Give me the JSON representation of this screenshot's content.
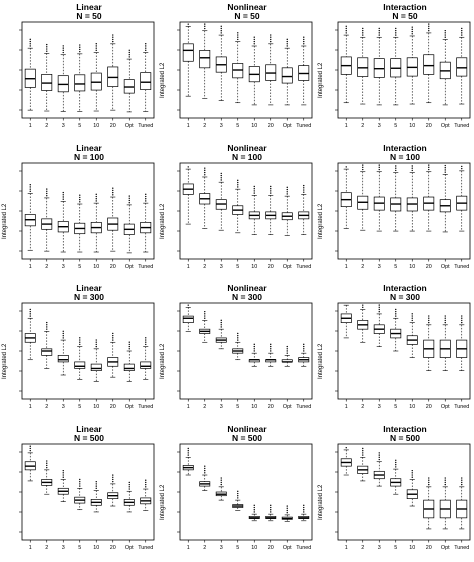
{
  "ylabel": "Integrated L2",
  "categories": [
    "1",
    "2",
    "3",
    "5",
    "10",
    "20",
    "Opt",
    "Tuned"
  ],
  "chart_data": [
    {
      "type": "box",
      "title": "Linear",
      "subtitle": "N = 50",
      "ylim": [
        0,
        0.022
      ],
      "yticks": [],
      "categories": [
        "1",
        "2",
        "3",
        "5",
        "10",
        "20",
        "Opt",
        "Tuned"
      ],
      "series": [
        {
          "median": 0.009,
          "q1": 0.007,
          "q3": 0.0112,
          "whisker_low": 0.0018,
          "whisker_high": 0.016
        },
        {
          "median": 0.008,
          "q1": 0.0063,
          "q3": 0.01,
          "whisker_low": 0.0016,
          "whisker_high": 0.0148
        },
        {
          "median": 0.0077,
          "q1": 0.006,
          "q3": 0.0097,
          "whisker_low": 0.0015,
          "whisker_high": 0.0145
        },
        {
          "median": 0.0078,
          "q1": 0.0062,
          "q3": 0.0099,
          "whisker_low": 0.0015,
          "whisker_high": 0.0147
        },
        {
          "median": 0.0082,
          "q1": 0.0064,
          "q3": 0.0103,
          "whisker_low": 0.0016,
          "whisker_high": 0.015
        },
        {
          "median": 0.0093,
          "q1": 0.0072,
          "q3": 0.0117,
          "whisker_low": 0.0018,
          "whisker_high": 0.017
        },
        {
          "median": 0.0071,
          "q1": 0.0057,
          "q3": 0.0088,
          "whisker_low": 0.0014,
          "whisker_high": 0.0135
        },
        {
          "median": 0.0082,
          "q1": 0.0065,
          "q3": 0.0104,
          "whisker_low": 0.0015,
          "whisker_high": 0.015
        }
      ]
    },
    {
      "type": "box",
      "title": "Nonlinear",
      "subtitle": "N = 50",
      "ylim": [
        0,
        0.022
      ],
      "yticks": [],
      "categories": [
        "1",
        "2",
        "3",
        "5",
        "10",
        "20",
        "Opt",
        "Tuned"
      ],
      "series": [
        {
          "median": 0.0155,
          "q1": 0.013,
          "q3": 0.017,
          "whisker_low": 0.005,
          "whisker_high": 0.021
        },
        {
          "median": 0.0138,
          "q1": 0.0115,
          "q3": 0.0155,
          "whisker_low": 0.0045,
          "whisker_high": 0.02
        },
        {
          "median": 0.0122,
          "q1": 0.0105,
          "q3": 0.014,
          "whisker_low": 0.004,
          "whisker_high": 0.019
        },
        {
          "median": 0.011,
          "q1": 0.0092,
          "q3": 0.0125,
          "whisker_low": 0.0035,
          "whisker_high": 0.0175
        },
        {
          "median": 0.01,
          "q1": 0.0083,
          "q3": 0.0118,
          "whisker_low": 0.003,
          "whisker_high": 0.0165
        },
        {
          "median": 0.0103,
          "q1": 0.0086,
          "q3": 0.0122,
          "whisker_low": 0.003,
          "whisker_high": 0.017
        },
        {
          "median": 0.0095,
          "q1": 0.008,
          "q3": 0.0115,
          "whisker_low": 0.003,
          "whisker_high": 0.016
        },
        {
          "median": 0.0102,
          "q1": 0.0086,
          "q3": 0.012,
          "whisker_low": 0.003,
          "whisker_high": 0.0165
        }
      ]
    },
    {
      "type": "box",
      "title": "Interaction",
      "subtitle": "N = 50",
      "ylim": [
        0,
        0.022
      ],
      "yticks": [],
      "categories": [
        "1",
        "2",
        "3",
        "5",
        "10",
        "20",
        "Opt",
        "Tuned"
      ],
      "series": [
        {
          "median": 0.012,
          "q1": 0.01,
          "q3": 0.014,
          "whisker_low": 0.0035,
          "whisker_high": 0.019
        },
        {
          "median": 0.0115,
          "q1": 0.0095,
          "q3": 0.0138,
          "whisker_low": 0.0032,
          "whisker_high": 0.0185
        },
        {
          "median": 0.0113,
          "q1": 0.0093,
          "q3": 0.0136,
          "whisker_low": 0.003,
          "whisker_high": 0.0185
        },
        {
          "median": 0.0114,
          "q1": 0.0094,
          "q3": 0.0136,
          "whisker_low": 0.003,
          "whisker_high": 0.0185
        },
        {
          "median": 0.0116,
          "q1": 0.0096,
          "q3": 0.0138,
          "whisker_low": 0.0032,
          "whisker_high": 0.0188
        },
        {
          "median": 0.012,
          "q1": 0.01,
          "q3": 0.0145,
          "whisker_low": 0.0035,
          "whisker_high": 0.0195
        },
        {
          "median": 0.0108,
          "q1": 0.009,
          "q3": 0.0128,
          "whisker_low": 0.003,
          "whisker_high": 0.018
        },
        {
          "median": 0.0115,
          "q1": 0.0096,
          "q3": 0.0138,
          "whisker_low": 0.0032,
          "whisker_high": 0.0185
        }
      ]
    },
    {
      "type": "box",
      "title": "Linear",
      "subtitle": "N = 100",
      "ylim": [
        0,
        0.011
      ],
      "yticks": [],
      "categories": [
        "1",
        "2",
        "3",
        "5",
        "10",
        "20",
        "Opt",
        "Tuned"
      ],
      "series": [
        {
          "median": 0.0045,
          "q1": 0.0038,
          "q3": 0.0051,
          "whisker_low": 0.001,
          "whisker_high": 0.0075
        },
        {
          "median": 0.004,
          "q1": 0.0034,
          "q3": 0.0046,
          "whisker_low": 0.0009,
          "whisker_high": 0.007
        },
        {
          "median": 0.0037,
          "q1": 0.0031,
          "q3": 0.0043,
          "whisker_low": 0.0008,
          "whisker_high": 0.0066
        },
        {
          "median": 0.0035,
          "q1": 0.0029,
          "q3": 0.0041,
          "whisker_low": 0.0008,
          "whisker_high": 0.0063
        },
        {
          "median": 0.0036,
          "q1": 0.003,
          "q3": 0.0042,
          "whisker_low": 0.0008,
          "whisker_high": 0.0064
        },
        {
          "median": 0.004,
          "q1": 0.0033,
          "q3": 0.0047,
          "whisker_low": 0.0009,
          "whisker_high": 0.0071
        },
        {
          "median": 0.0034,
          "q1": 0.0028,
          "q3": 0.004,
          "whisker_low": 0.0007,
          "whisker_high": 0.0062
        },
        {
          "median": 0.0036,
          "q1": 0.003,
          "q3": 0.0042,
          "whisker_low": 0.0008,
          "whisker_high": 0.0064
        }
      ]
    },
    {
      "type": "box",
      "title": "Nonlinear",
      "subtitle": "N = 100",
      "ylim": [
        0,
        0.011
      ],
      "yticks": [],
      "categories": [
        "1",
        "2",
        "3",
        "5",
        "10",
        "20",
        "Opt",
        "Tuned"
      ],
      "series": [
        {
          "median": 0.008,
          "q1": 0.0074,
          "q3": 0.0086,
          "whisker_low": 0.004,
          "whisker_high": 0.0103
        },
        {
          "median": 0.0069,
          "q1": 0.0063,
          "q3": 0.0075,
          "whisker_low": 0.0035,
          "whisker_high": 0.0094
        },
        {
          "median": 0.0063,
          "q1": 0.0057,
          "q3": 0.0068,
          "whisker_low": 0.0033,
          "whisker_high": 0.0088
        },
        {
          "median": 0.0056,
          "q1": 0.0051,
          "q3": 0.0061,
          "whisker_low": 0.003,
          "whisker_high": 0.008
        },
        {
          "median": 0.005,
          "q1": 0.0046,
          "q3": 0.0054,
          "whisker_low": 0.0028,
          "whisker_high": 0.0073
        },
        {
          "median": 0.005,
          "q1": 0.0046,
          "q3": 0.0054,
          "whisker_low": 0.0028,
          "whisker_high": 0.0073
        },
        {
          "median": 0.0049,
          "q1": 0.0045,
          "q3": 0.0053,
          "whisker_low": 0.0027,
          "whisker_high": 0.0072
        },
        {
          "median": 0.005,
          "q1": 0.0046,
          "q3": 0.0054,
          "whisker_low": 0.0028,
          "whisker_high": 0.0074
        }
      ]
    },
    {
      "type": "box",
      "title": "Interaction",
      "subtitle": "N = 100",
      "ylim": [
        0,
        0.011
      ],
      "yticks": [],
      "categories": [
        "1",
        "2",
        "3",
        "5",
        "10",
        "20",
        "Opt",
        "Tuned"
      ],
      "series": [
        {
          "median": 0.0068,
          "q1": 0.006,
          "q3": 0.0076,
          "whisker_low": 0.0035,
          "whisker_high": 0.0103
        },
        {
          "median": 0.0065,
          "q1": 0.0057,
          "q3": 0.0072,
          "whisker_low": 0.0033,
          "whisker_high": 0.01
        },
        {
          "median": 0.0064,
          "q1": 0.0056,
          "q3": 0.0071,
          "whisker_low": 0.0032,
          "whisker_high": 0.01
        },
        {
          "median": 0.0063,
          "q1": 0.0055,
          "q3": 0.007,
          "whisker_low": 0.0032,
          "whisker_high": 0.0099
        },
        {
          "median": 0.0063,
          "q1": 0.0055,
          "q3": 0.007,
          "whisker_low": 0.0032,
          "whisker_high": 0.0099
        },
        {
          "median": 0.0064,
          "q1": 0.0056,
          "q3": 0.0071,
          "whisker_low": 0.0032,
          "whisker_high": 0.01
        },
        {
          "median": 0.0061,
          "q1": 0.0054,
          "q3": 0.0068,
          "whisker_low": 0.0031,
          "whisker_high": 0.0097
        },
        {
          "median": 0.0064,
          "q1": 0.0056,
          "q3": 0.0072,
          "whisker_low": 0.0032,
          "whisker_high": 0.0101
        }
      ]
    },
    {
      "type": "box",
      "title": "Linear",
      "subtitle": "N = 300",
      "ylim": [
        0,
        0.0044
      ],
      "yticks": [],
      "categories": [
        "1",
        "2",
        "3",
        "5",
        "10",
        "20",
        "Opt",
        "Tuned"
      ],
      "series": [
        {
          "median": 0.0028,
          "q1": 0.0026,
          "q3": 0.003,
          "whisker_low": 0.0018,
          "whisker_high": 0.0037
        },
        {
          "median": 0.0022,
          "q1": 0.002,
          "q3": 0.0023,
          "whisker_low": 0.0014,
          "whisker_high": 0.0031
        },
        {
          "median": 0.0018,
          "q1": 0.0017,
          "q3": 0.002,
          "whisker_low": 0.0011,
          "whisker_high": 0.0027
        },
        {
          "median": 0.0015,
          "q1": 0.0014,
          "q3": 0.0017,
          "whisker_low": 0.0009,
          "whisker_high": 0.0024
        },
        {
          "median": 0.0014,
          "q1": 0.0013,
          "q3": 0.0016,
          "whisker_low": 0.0008,
          "whisker_high": 0.0023
        },
        {
          "median": 0.0017,
          "q1": 0.0015,
          "q3": 0.0019,
          "whisker_low": 0.001,
          "whisker_high": 0.0026
        },
        {
          "median": 0.0014,
          "q1": 0.0013,
          "q3": 0.0016,
          "whisker_low": 0.0008,
          "whisker_high": 0.0022
        },
        {
          "median": 0.0015,
          "q1": 0.0014,
          "q3": 0.0017,
          "whisker_low": 0.0009,
          "whisker_high": 0.0024
        }
      ]
    },
    {
      "type": "box",
      "title": "Nonlinear",
      "subtitle": "N = 300",
      "ylim": [
        0,
        0.0044
      ],
      "yticks": [],
      "categories": [
        "1",
        "2",
        "3",
        "5",
        "10",
        "20",
        "Opt",
        "Tuned"
      ],
      "series": [
        {
          "median": 0.0037,
          "q1": 0.0035,
          "q3": 0.0038,
          "whisker_low": 0.0031,
          "whisker_high": 0.0042
        },
        {
          "median": 0.0031,
          "q1": 0.003,
          "q3": 0.0032,
          "whisker_low": 0.0026,
          "whisker_high": 0.0036
        },
        {
          "median": 0.0027,
          "q1": 0.0026,
          "q3": 0.0028,
          "whisker_low": 0.0023,
          "whisker_high": 0.0032
        },
        {
          "median": 0.0022,
          "q1": 0.0021,
          "q3": 0.0023,
          "whisker_low": 0.0018,
          "whisker_high": 0.0026
        },
        {
          "median": 0.0018,
          "q1": 0.0017,
          "q3": 0.0018,
          "whisker_low": 0.0015,
          "whisker_high": 0.0021
        },
        {
          "median": 0.0018,
          "q1": 0.0017,
          "q3": 0.0018,
          "whisker_low": 0.0015,
          "whisker_high": 0.0021
        },
        {
          "median": 0.0017,
          "q1": 0.0017,
          "q3": 0.0018,
          "whisker_low": 0.0015,
          "whisker_high": 0.002
        },
        {
          "median": 0.0018,
          "q1": 0.0017,
          "q3": 0.0019,
          "whisker_low": 0.0015,
          "whisker_high": 0.0021
        }
      ]
    },
    {
      "type": "box",
      "title": "Interaction",
      "subtitle": "N = 300",
      "ylim": [
        0,
        0.0044
      ],
      "yticks": [],
      "categories": [
        "1",
        "2",
        "3",
        "5",
        "10",
        "20",
        "Opt",
        "Tuned"
      ],
      "series": [
        {
          "median": 0.0037,
          "q1": 0.0035,
          "q3": 0.0039,
          "whisker_low": 0.0028,
          "whisker_high": 0.0043
        },
        {
          "median": 0.0034,
          "q1": 0.0032,
          "q3": 0.0036,
          "whisker_low": 0.0026,
          "whisker_high": 0.0041
        },
        {
          "median": 0.0032,
          "q1": 0.003,
          "q3": 0.0034,
          "whisker_low": 0.0024,
          "whisker_high": 0.0039
        },
        {
          "median": 0.003,
          "q1": 0.0028,
          "q3": 0.0032,
          "whisker_low": 0.0022,
          "whisker_high": 0.0037
        },
        {
          "median": 0.0027,
          "q1": 0.0025,
          "q3": 0.0029,
          "whisker_low": 0.0019,
          "whisker_high": 0.0035
        },
        {
          "median": 0.0023,
          "q1": 0.0019,
          "q3": 0.0027,
          "whisker_low": 0.0013,
          "whisker_high": 0.0034
        },
        {
          "median": 0.0023,
          "q1": 0.0019,
          "q3": 0.0027,
          "whisker_low": 0.0013,
          "whisker_high": 0.0034
        },
        {
          "median": 0.0023,
          "q1": 0.0019,
          "q3": 0.0027,
          "whisker_low": 0.0013,
          "whisker_high": 0.0034
        }
      ]
    },
    {
      "type": "box",
      "title": "Linear",
      "subtitle": "N = 500",
      "ylim": [
        0.0004,
        0.0017
      ],
      "yticks": [],
      "categories": [
        "1",
        "2",
        "3",
        "5",
        "10",
        "20",
        "Opt",
        "Tuned"
      ],
      "series": [
        {
          "median": 0.0014,
          "q1": 0.00135,
          "q3": 0.00146,
          "whisker_low": 0.0012,
          "whisker_high": 0.00158
        },
        {
          "median": 0.00118,
          "q1": 0.00114,
          "q3": 0.00122,
          "whisker_low": 0.00102,
          "whisker_high": 0.00135
        },
        {
          "median": 0.00106,
          "q1": 0.00102,
          "q3": 0.0011,
          "whisker_low": 0.00092,
          "whisker_high": 0.00122
        },
        {
          "median": 0.00094,
          "q1": 0.0009,
          "q3": 0.00098,
          "whisker_low": 0.00081,
          "whisker_high": 0.0011
        },
        {
          "median": 0.00091,
          "q1": 0.00087,
          "q3": 0.00095,
          "whisker_low": 0.00078,
          "whisker_high": 0.00107
        },
        {
          "median": 0.001,
          "q1": 0.00096,
          "q3": 0.00104,
          "whisker_low": 0.00086,
          "whisker_high": 0.00116
        },
        {
          "median": 0.00091,
          "q1": 0.00087,
          "q3": 0.00095,
          "whisker_low": 0.00078,
          "whisker_high": 0.00106
        },
        {
          "median": 0.00093,
          "q1": 0.00089,
          "q3": 0.00097,
          "whisker_low": 0.0008,
          "whisker_high": 0.00109
        }
      ]
    },
    {
      "type": "box",
      "title": "Nonlinear",
      "subtitle": "N = 500",
      "ylim": [
        0.0004,
        0.0017
      ],
      "yticks": [],
      "categories": [
        "1",
        "2",
        "3",
        "5",
        "10",
        "20",
        "Opt",
        "Tuned"
      ],
      "series": [
        {
          "median": 0.00138,
          "q1": 0.00135,
          "q3": 0.00141,
          "whisker_low": 0.00128,
          "whisker_high": 0.00152
        },
        {
          "median": 0.00116,
          "q1": 0.00113,
          "q3": 0.00119,
          "whisker_low": 0.00107,
          "whisker_high": 0.00128
        },
        {
          "median": 0.00102,
          "q1": 0.001,
          "q3": 0.00105,
          "whisker_low": 0.00094,
          "whisker_high": 0.00112
        },
        {
          "median": 0.00086,
          "q1": 0.00084,
          "q3": 0.00088,
          "whisker_low": 0.0008,
          "whisker_high": 0.00094
        },
        {
          "median": 0.0007,
          "q1": 0.00069,
          "q3": 0.00072,
          "whisker_low": 0.00066,
          "whisker_high": 0.00075
        },
        {
          "median": 0.0007,
          "q1": 0.00069,
          "q3": 0.00072,
          "whisker_low": 0.00066,
          "whisker_high": 0.00075
        },
        {
          "median": 0.00069,
          "q1": 0.00068,
          "q3": 0.00071,
          "whisker_low": 0.00065,
          "whisker_high": 0.00074
        },
        {
          "median": 0.0007,
          "q1": 0.00069,
          "q3": 0.00072,
          "whisker_low": 0.00066,
          "whisker_high": 0.00075
        }
      ]
    },
    {
      "type": "box",
      "title": "Interaction",
      "subtitle": "N = 500",
      "ylim": [
        0.0004,
        0.0017
      ],
      "yticks": [],
      "categories": [
        "1",
        "2",
        "3",
        "5",
        "10",
        "20",
        "Opt",
        "Tuned"
      ],
      "series": [
        {
          "median": 0.00145,
          "q1": 0.0014,
          "q3": 0.0015,
          "whisker_low": 0.00128,
          "whisker_high": 0.00162
        },
        {
          "median": 0.00135,
          "q1": 0.0013,
          "q3": 0.0014,
          "whisker_low": 0.0012,
          "whisker_high": 0.00152
        },
        {
          "median": 0.00128,
          "q1": 0.00123,
          "q3": 0.00133,
          "whisker_low": 0.00113,
          "whisker_high": 0.00146
        },
        {
          "median": 0.00118,
          "q1": 0.00113,
          "q3": 0.00123,
          "whisker_low": 0.00102,
          "whisker_high": 0.00136
        },
        {
          "median": 0.00102,
          "q1": 0.00096,
          "q3": 0.00108,
          "whisker_low": 0.00086,
          "whisker_high": 0.00122
        },
        {
          "median": 0.00082,
          "q1": 0.0007,
          "q3": 0.00094,
          "whisker_low": 0.00055,
          "whisker_high": 0.00112
        },
        {
          "median": 0.00082,
          "q1": 0.0007,
          "q3": 0.00094,
          "whisker_low": 0.00055,
          "whisker_high": 0.00112
        },
        {
          "median": 0.00082,
          "q1": 0.0007,
          "q3": 0.00094,
          "whisker_low": 0.00055,
          "whisker_high": 0.00112
        }
      ]
    }
  ]
}
